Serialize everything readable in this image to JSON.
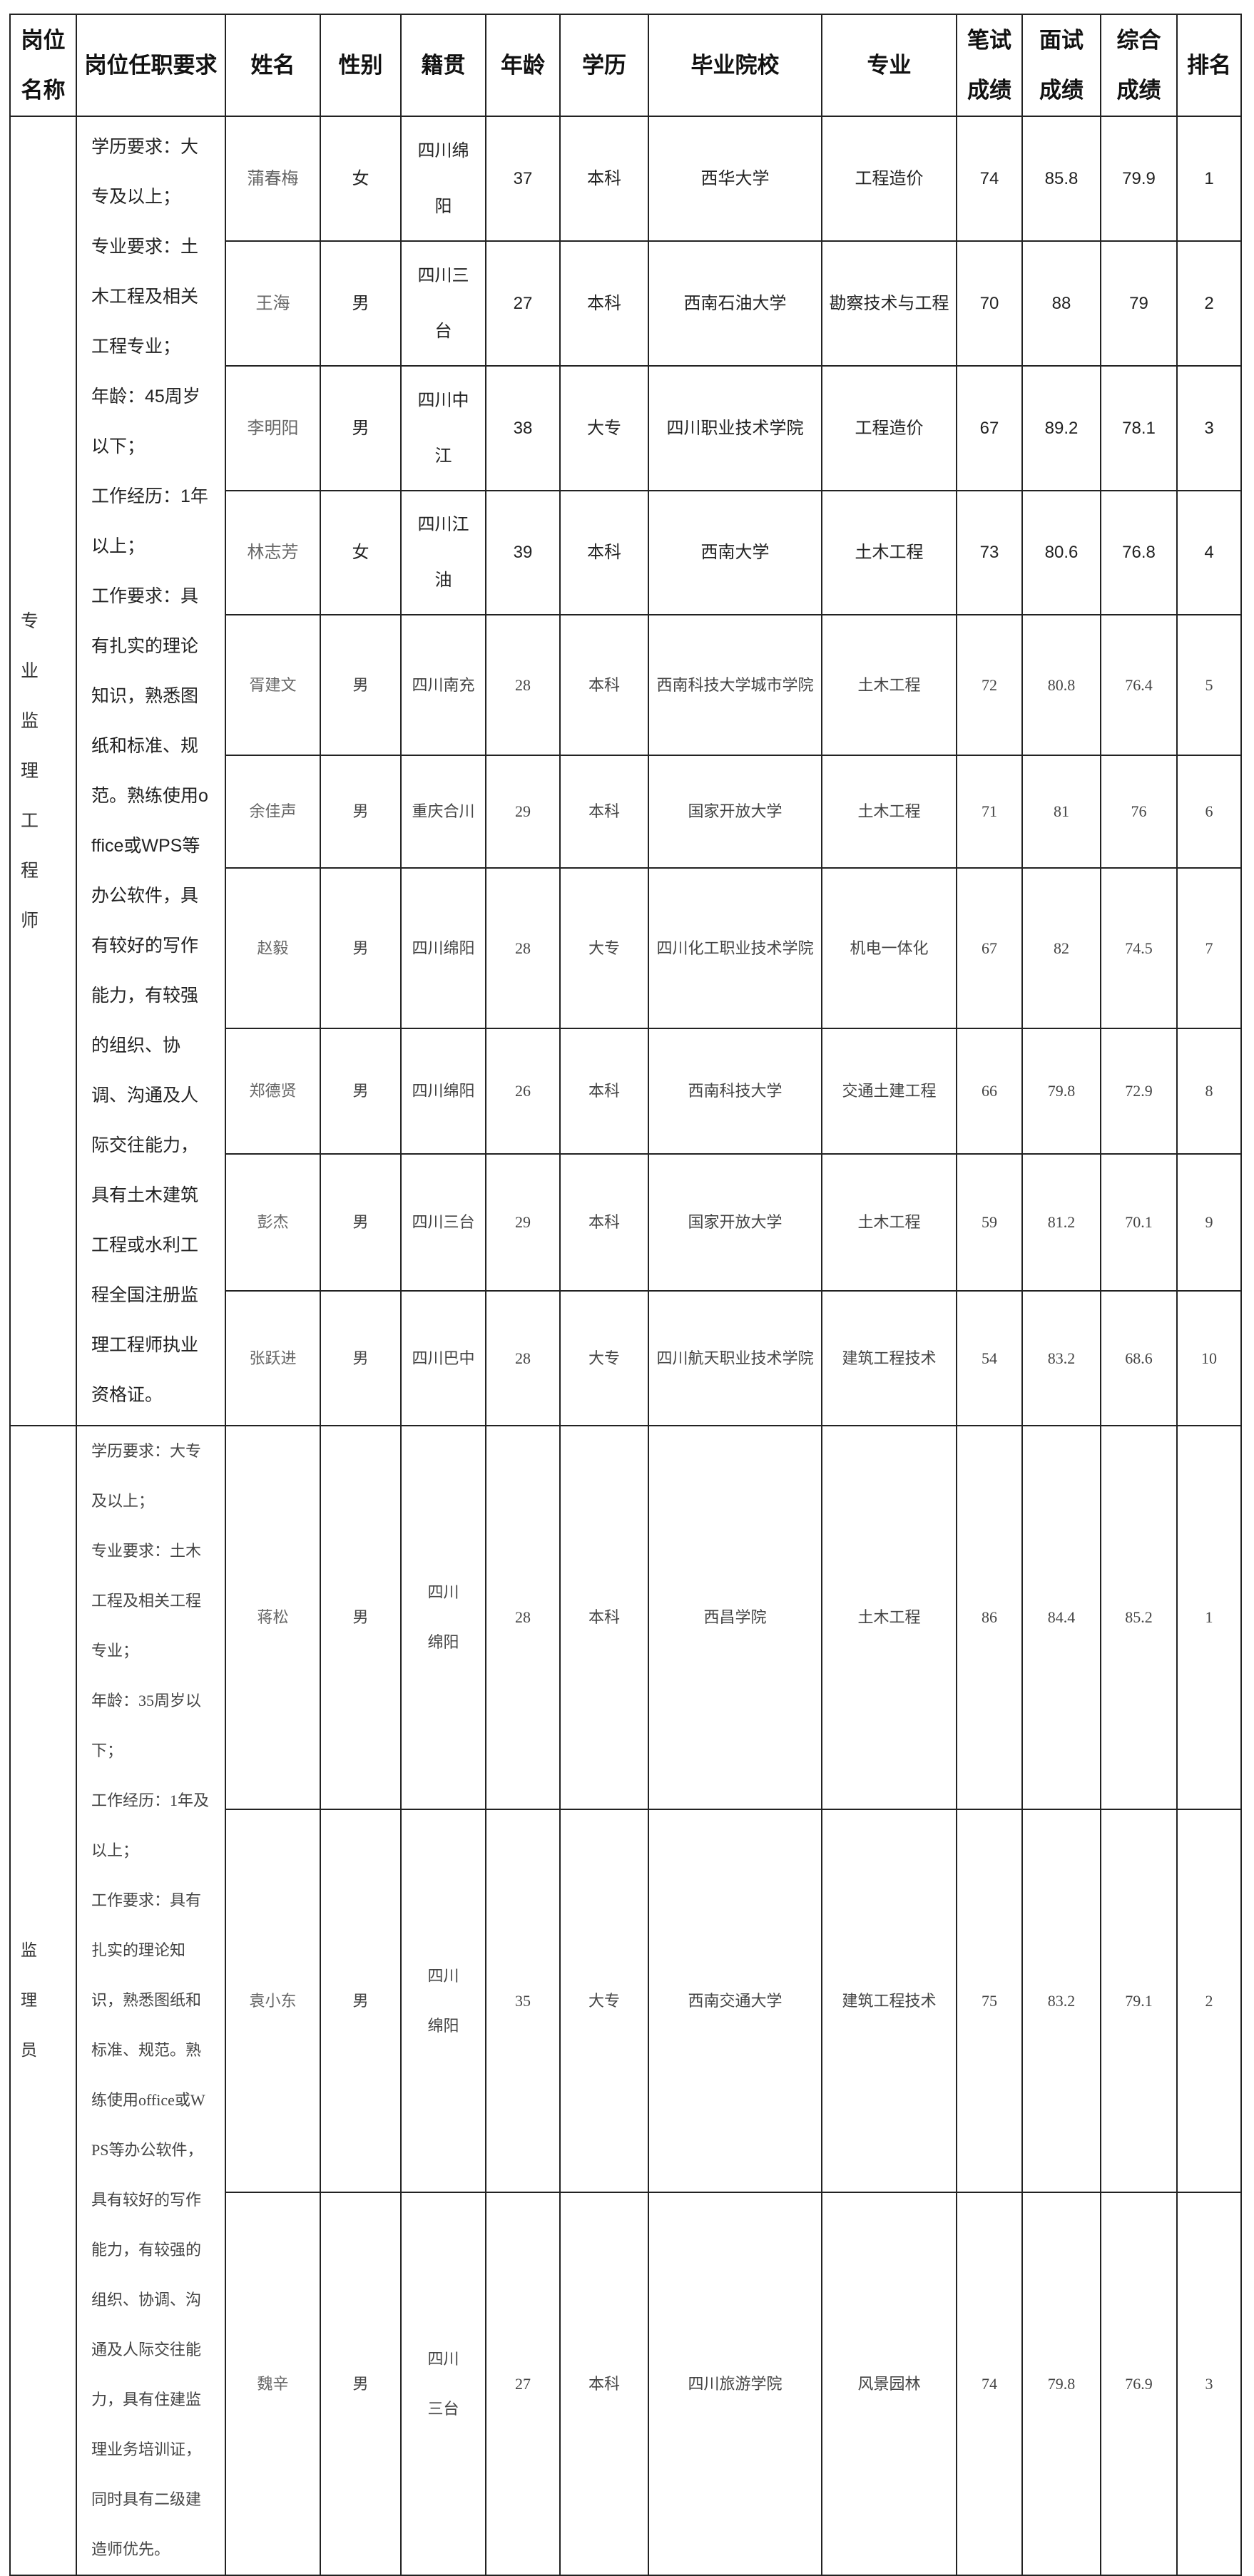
{
  "headers": [
    "岗位名称",
    "岗位任职要求",
    "姓名",
    "性别",
    "籍贯",
    "年龄",
    "学历",
    "毕业院校",
    "专业",
    "笔试成绩",
    "面试成绩",
    "综合成绩",
    "排名"
  ],
  "groups": [
    {
      "post": "专业监理工程师",
      "requirements": "学历要求：大专及以上；\n专业要求：土木工程及相关工程专业；\n年龄：45周岁以下；\n工作经历：1年以上；\n工作要求：具有扎实的理论知识，熟悉图纸和标准、规范。熟练使用office或WPS等办公软件，具有较好的写作能力，有较强的组织、协调、沟通及人际交往能力，具有土木建筑工程或水利工程全国注册监理工程师执业资格证。",
      "rows": [
        {
          "name": "蒲春梅",
          "gender": "女",
          "native": "四川绵阳",
          "age": "37",
          "edu": "本科",
          "school": "西华大学",
          "major": "工程造价",
          "written": "74",
          "interview": "85.8",
          "total": "79.9",
          "rank": "1"
        },
        {
          "name": "王海",
          "gender": "男",
          "native": "四川三台",
          "age": "27",
          "edu": "本科",
          "school": "西南石油大学",
          "major": "勘察技术与工程",
          "written": "70",
          "interview": "88",
          "total": "79",
          "rank": "2"
        },
        {
          "name": "李明阳",
          "gender": "男",
          "native": "四川中江",
          "age": "38",
          "edu": "大专",
          "school": "四川职业技术学院",
          "major": "工程造价",
          "written": "67",
          "interview": "89.2",
          "total": "78.1",
          "rank": "3"
        },
        {
          "name": "林志芳",
          "gender": "女",
          "native": "四川江油",
          "age": "39",
          "edu": "本科",
          "school": "西南大学",
          "major": "土木工程",
          "written": "73",
          "interview": "80.6",
          "total": "76.8",
          "rank": "4"
        },
        {
          "name": "胥建文",
          "gender": "男",
          "native": "四川南充",
          "age": "28",
          "edu": "本科",
          "school": "西南科技大学城市学院",
          "major": "土木工程",
          "written": "72",
          "interview": "80.8",
          "total": "76.4",
          "rank": "5"
        },
        {
          "name": "余佳声",
          "gender": "男",
          "native": "重庆合川",
          "age": "29",
          "edu": "本科",
          "school": "国家开放大学",
          "major": "土木工程",
          "written": "71",
          "interview": "81",
          "total": "76",
          "rank": "6"
        },
        {
          "name": "赵毅",
          "gender": "男",
          "native": "四川绵阳",
          "age": "28",
          "edu": "大专",
          "school": "四川化工职业技术学院",
          "major": "机电一体化",
          "written": "67",
          "interview": "82",
          "total": "74.5",
          "rank": "7"
        },
        {
          "name": "郑德贤",
          "gender": "男",
          "native": "四川绵阳",
          "age": "26",
          "edu": "本科",
          "school": "西南科技大学",
          "major": "交通土建工程",
          "written": "66",
          "interview": "79.8",
          "total": "72.9",
          "rank": "8"
        },
        {
          "name": "彭杰",
          "gender": "男",
          "native": "四川三台",
          "age": "29",
          "edu": "本科",
          "school": "国家开放大学",
          "major": "土木工程",
          "written": "59",
          "interview": "81.2",
          "total": "70.1",
          "rank": "9"
        },
        {
          "name": "张跃进",
          "gender": "男",
          "native": "四川巴中",
          "age": "28",
          "edu": "大专",
          "school": "四川航天职业技术学院",
          "major": "建筑工程技术",
          "written": "54",
          "interview": "83.2",
          "total": "68.6",
          "rank": "10"
        }
      ]
    },
    {
      "post": "监理员",
      "requirements": "学历要求：大专及以上；\n专业要求：土木工程及相关工程专业；\n年龄：35周岁以下；\n工作经历：1年及以上；\n工作要求：具有扎实的理论知识，熟悉图纸和标准、规范。熟练使用office或WPS等办公软件，具有较好的写作能力，有较强的组织、协调、沟通及人际交往能力，具有住建监理业务培训证，同时具有二级建造师优先。",
      "rows": [
        {
          "name": "蒋松",
          "gender": "男",
          "native": "四川绵阳",
          "age": "28",
          "edu": "本科",
          "school": "西昌学院",
          "major": "土木工程",
          "written": "86",
          "interview": "84.4",
          "total": "85.2",
          "rank": "1"
        },
        {
          "name": "袁小东",
          "gender": "男",
          "native": "四川绵阳",
          "age": "35",
          "edu": "大专",
          "school": "西南交通大学",
          "major": "建筑工程技术",
          "written": "75",
          "interview": "83.2",
          "total": "79.1",
          "rank": "2"
        },
        {
          "name": "魏辛",
          "gender": "男",
          "native": "四川三台",
          "age": "27",
          "edu": "本科",
          "school": "四川旅游学院",
          "major": "风景园林",
          "written": "74",
          "interview": "79.8",
          "total": "76.9",
          "rank": "3"
        }
      ]
    }
  ]
}
